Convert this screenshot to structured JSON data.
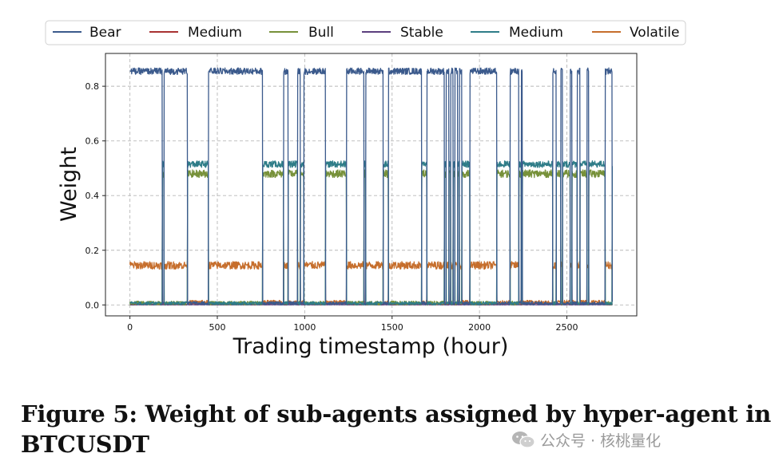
{
  "figure": {
    "caption_line1": "Figure 5: Weight of sub-agents assigned by hyper-agent in",
    "caption_line2": "BTCUSDT"
  },
  "watermark": {
    "text": "公众号 · 核桃量化",
    "icon": "wechat-icon"
  },
  "chart_data": {
    "type": "line",
    "title": "",
    "xlabel": "Trading timestamp (hour)",
    "ylabel": "Weight",
    "xlim": [
      -140,
      2900
    ],
    "ylim": [
      -0.04,
      0.92
    ],
    "xticks": [
      0,
      500,
      1000,
      1500,
      2000,
      2500
    ],
    "yticks": [
      0.0,
      0.2,
      0.4,
      0.6,
      0.8
    ],
    "ytick_labels": [
      "0.0",
      "0.2",
      "0.4",
      "0.6",
      "0.8"
    ],
    "grid": true,
    "legend_position": "top",
    "colors": {
      "bear": "#3b5a8c",
      "medium_red": "#a83232",
      "bull": "#77913a",
      "stable": "#5c3f7e",
      "medium_teal": "#2f7d88",
      "volatile": "#c66e2c"
    },
    "series": [
      {
        "name": "Bear",
        "key": "bear"
      },
      {
        "name": "Medium",
        "key": "medium_red"
      },
      {
        "name": "Bull",
        "key": "bull"
      },
      {
        "name": "Stable",
        "key": "stable"
      },
      {
        "name": "Medium",
        "key": "medium_teal"
      },
      {
        "name": "Volatile",
        "key": "volatile"
      }
    ],
    "x_range": [
      0,
      2760
    ],
    "regimes_note": "Bear-dominant: Bear≈0.855, Volatile≈0.145. Bull/Medium-dominant: Medium(teal)≈0.515, Bull≈0.48, others≈0.",
    "bear_regime_levels": {
      "bear": 0.855,
      "volatile": 0.145,
      "bull": 0.0,
      "medium_teal": 0.0,
      "medium_red": 0.0,
      "stable": 0.0
    },
    "bull_regime_levels": {
      "bear": 0.0,
      "volatile": 0.003,
      "bull": 0.48,
      "medium_teal": 0.515,
      "medium_red": 0.004,
      "stable": 0.0
    },
    "bear_segments": [
      [
        0,
        185
      ],
      [
        195,
        330
      ],
      [
        450,
        760
      ],
      [
        880,
        905
      ],
      [
        960,
        975
      ],
      [
        995,
        1120
      ],
      [
        1240,
        1340
      ],
      [
        1350,
        1450
      ],
      [
        1480,
        1670
      ],
      [
        1700,
        1720
      ],
      [
        1725,
        1735
      ],
      [
        1700,
        1800
      ],
      [
        1810,
        1825
      ],
      [
        1835,
        1850
      ],
      [
        1860,
        1875
      ],
      [
        1885,
        1900
      ],
      [
        1945,
        2100
      ],
      [
        2175,
        2200
      ],
      [
        2200,
        2225
      ],
      [
        2240,
        2245
      ],
      [
        2420,
        2440
      ],
      [
        2465,
        2475
      ],
      [
        2520,
        2530
      ],
      [
        2560,
        2575
      ],
      [
        2615,
        2625
      ],
      [
        2720,
        2760
      ]
    ]
  }
}
